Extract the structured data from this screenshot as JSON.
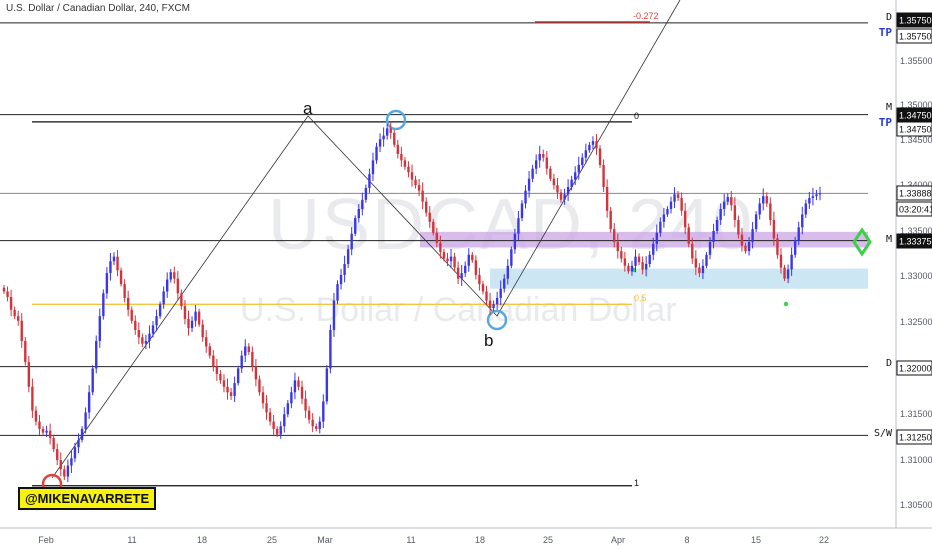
{
  "header": {
    "title": "U.S. Dollar / Canadian Dollar, 240, FXCM"
  },
  "watermark": {
    "symbol": "USDCAD, 240",
    "name": "U.S. Dollar / Canadian Dollar"
  },
  "handle": "@MIKENAVARRETE",
  "colors": {
    "bull": "#3a37e8",
    "bear": "#d3343c",
    "accent_red": "#e04040",
    "fib_yellow": "#f4c542",
    "zone_purple": "#c9a6e6",
    "zone_blue": "#bfe0f0",
    "marker_green": "#3ecf4a"
  },
  "chart_data": {
    "type": "candlestick",
    "ylim": [
      1.3025,
      1.36
    ],
    "y_ticks": [
      "1.35750",
      "1.35500",
      "1.35000",
      "1.34500",
      "1.34000",
      "1.33500",
      "1.33000",
      "1.32500",
      "1.32000",
      "1.31500",
      "1.31000",
      "1.30500"
    ],
    "x_ticks": [
      "Feb",
      "11",
      "18",
      "25",
      "Mar",
      "11",
      "18",
      "25",
      "Apr",
      "8",
      "15",
      "22"
    ],
    "price_labels": [
      {
        "value": "1.35750",
        "style": "dark"
      },
      {
        "value": "1.35750",
        "style": "outline"
      },
      {
        "value": "1.34750",
        "style": "dark"
      },
      {
        "value": "1.34750",
        "style": "outline"
      },
      {
        "value": "1.33888",
        "style": "outline"
      },
      {
        "value": "03:20:41",
        "style": "outline"
      },
      {
        "value": "1.33375",
        "style": "dark"
      },
      {
        "value": "1.32000",
        "style": "outline"
      },
      {
        "value": "1.31250",
        "style": "outline"
      }
    ],
    "levels": [
      {
        "price": 1.3575,
        "tag": "D",
        "extra": "TP"
      },
      {
        "price": 1.3475,
        "tag": "M",
        "extra": "TP"
      },
      {
        "price": 1.3389,
        "tag": ""
      },
      {
        "price": 1.33375,
        "tag": "M"
      },
      {
        "price": 1.32,
        "tag": "D"
      },
      {
        "price": 1.3125,
        "tag": "S/W"
      }
    ],
    "fib_labels": {
      "level_0": "0",
      "level_1": "1",
      "level_05": "0.5",
      "level_ext": "-0.272"
    },
    "wave_labels": {
      "a": "a",
      "b": "b"
    },
    "closes": [
      1.3282,
      1.3276,
      1.3262,
      1.3255,
      1.325,
      1.3228,
      1.3205,
      1.3178,
      1.3152,
      1.314,
      1.3132,
      1.3128,
      1.313,
      1.3122,
      1.311,
      1.3098,
      1.3088,
      1.308,
      1.3092,
      1.31,
      1.3112,
      1.312,
      1.3132,
      1.315,
      1.3172,
      1.3198,
      1.3228,
      1.3255,
      1.328,
      1.3302,
      1.3315,
      1.332,
      1.3305,
      1.329,
      1.3275,
      1.3262,
      1.325,
      1.324,
      1.3232,
      1.3225,
      1.3228,
      1.3236,
      1.3245,
      1.3255,
      1.3268,
      1.3282,
      1.3295,
      1.3303,
      1.3296,
      1.328,
      1.3266,
      1.3252,
      1.3242,
      1.325,
      1.326,
      1.3246,
      1.3232,
      1.3222,
      1.3212,
      1.32,
      1.3192,
      1.3185,
      1.3178,
      1.3172,
      1.3168,
      1.3182,
      1.3198,
      1.3212,
      1.3222,
      1.3216,
      1.32,
      1.3186,
      1.3172,
      1.316,
      1.315,
      1.314,
      1.3132,
      1.3126,
      1.3135,
      1.3148,
      1.316,
      1.3172,
      1.3185,
      1.3178,
      1.3165,
      1.3152,
      1.3142,
      1.3135,
      1.3132,
      1.314,
      1.3162,
      1.3198,
      1.324,
      1.3272,
      1.329,
      1.33,
      1.3312,
      1.3328,
      1.3345,
      1.3362,
      1.3372,
      1.3382,
      1.3395,
      1.341,
      1.3425,
      1.344,
      1.3448,
      1.3452,
      1.346,
      1.3455,
      1.3442,
      1.3432,
      1.3425,
      1.3418,
      1.3412,
      1.3404,
      1.3398,
      1.3392,
      1.338,
      1.3368,
      1.3358,
      1.3346,
      1.3335,
      1.3325,
      1.3318,
      1.3315,
      1.332,
      1.3308,
      1.3296,
      1.3302,
      1.331,
      1.3322,
      1.3316,
      1.33,
      1.329,
      1.3282,
      1.3272,
      1.3264,
      1.3268,
      1.3275,
      1.3285,
      1.3296,
      1.331,
      1.3328,
      1.3345,
      1.3362,
      1.3378,
      1.3392,
      1.3405,
      1.3416,
      1.3425,
      1.3432,
      1.3428,
      1.3416,
      1.3405,
      1.3398,
      1.339,
      1.3382,
      1.3388,
      1.3396,
      1.3404,
      1.3412,
      1.342,
      1.3428,
      1.3436,
      1.3442,
      1.3446,
      1.3438,
      1.342,
      1.3396,
      1.337,
      1.335,
      1.3336,
      1.3326,
      1.3318,
      1.331,
      1.3304,
      1.331,
      1.332,
      1.3314,
      1.3306,
      1.3312,
      1.3322,
      1.3334,
      1.3346,
      1.3358,
      1.3366,
      1.3372,
      1.338,
      1.3388,
      1.3384,
      1.337,
      1.3352,
      1.3334,
      1.3318,
      1.3308,
      1.3302,
      1.331,
      1.3322,
      1.3336,
      1.3348,
      1.336,
      1.3372,
      1.338,
      1.3385,
      1.3376,
      1.336,
      1.3344,
      1.3332,
      1.3326,
      1.3336,
      1.335,
      1.3366,
      1.3378,
      1.3386,
      1.3378,
      1.336,
      1.334,
      1.3322,
      1.3308,
      1.3296,
      1.3306,
      1.3322,
      1.3338,
      1.3352,
      1.3366,
      1.3378,
      1.3384,
      1.3386,
      1.3388,
      1.3389
    ]
  }
}
